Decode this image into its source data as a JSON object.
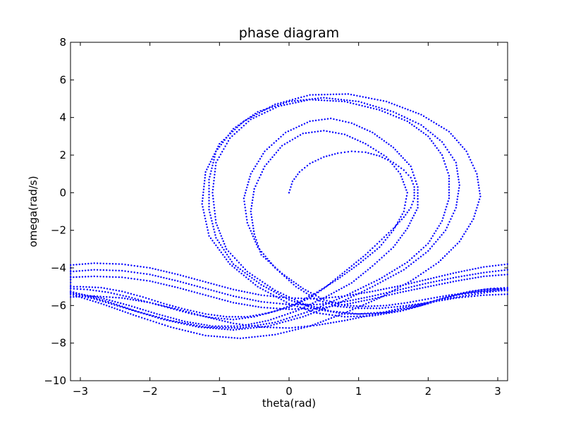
{
  "chart_data": {
    "type": "scatter",
    "title": "phase diagram",
    "xlabel": "theta(rad)",
    "ylabel": "omega(rad/s)",
    "xlim": [
      -3.14159,
      3.14159
    ],
    "ylim": [
      -10,
      8
    ],
    "xticks": [
      -3,
      -2,
      -1,
      0,
      1,
      2,
      3
    ],
    "yticks": [
      -10,
      -8,
      -6,
      -4,
      -2,
      0,
      2,
      4,
      6,
      8
    ],
    "xtick_labels": [
      "−3",
      "−2",
      "−1",
      "0",
      "1",
      "2",
      "3"
    ],
    "ytick_labels": [
      "−10",
      "−8",
      "−6",
      "−4",
      "−2",
      "0",
      "2",
      "4",
      "6",
      "8"
    ],
    "grid": false,
    "marker": "dot",
    "color": "#0000ff",
    "series": [
      {
        "points": [
          [
            0.0,
            0.0
          ],
          [
            0.05,
            0.6
          ],
          [
            0.15,
            1.1
          ],
          [
            0.3,
            1.55
          ],
          [
            0.5,
            1.9
          ],
          [
            0.7,
            2.1
          ],
          [
            0.9,
            2.2
          ],
          [
            1.1,
            2.15
          ],
          [
            1.3,
            1.95
          ],
          [
            1.5,
            1.6
          ],
          [
            1.65,
            1.2
          ],
          [
            1.75,
            0.8
          ],
          [
            1.8,
            0.3
          ],
          [
            1.8,
            -0.3
          ],
          [
            1.75,
            -0.8
          ],
          [
            1.65,
            -1.3
          ],
          [
            1.5,
            -1.9
          ],
          [
            1.3,
            -2.6
          ],
          [
            1.1,
            -3.3
          ],
          [
            0.9,
            -3.9
          ],
          [
            0.7,
            -4.5
          ],
          [
            0.5,
            -5.1
          ],
          [
            0.3,
            -5.6
          ],
          [
            0.0,
            -6.1
          ],
          [
            -0.3,
            -6.4
          ],
          [
            -0.6,
            -6.6
          ],
          [
            -0.9,
            -6.6
          ],
          [
            -1.2,
            -6.45
          ],
          [
            -1.5,
            -6.2
          ],
          [
            -1.8,
            -5.9
          ],
          [
            -2.1,
            -5.55
          ],
          [
            -2.4,
            -5.25
          ],
          [
            -2.7,
            -5.05
          ],
          [
            -3.0,
            -5.0
          ],
          [
            -3.14,
            -5.0
          ],
          [
            3.14,
            -5.1
          ],
          [
            2.9,
            -5.2
          ],
          [
            2.6,
            -5.3
          ],
          [
            2.3,
            -5.45
          ],
          [
            2.0,
            -5.65
          ],
          [
            1.7,
            -5.85
          ],
          [
            1.4,
            -6.0
          ],
          [
            1.1,
            -6.05
          ],
          [
            0.8,
            -6.0
          ],
          [
            0.5,
            -5.7
          ],
          [
            0.2,
            -5.1
          ],
          [
            -0.1,
            -4.3
          ],
          [
            -0.4,
            -3.3
          ],
          [
            -0.5,
            -2.2
          ],
          [
            -0.55,
            -1.0
          ],
          [
            -0.5,
            0.2
          ],
          [
            -0.35,
            1.4
          ],
          [
            -0.1,
            2.5
          ],
          [
            0.2,
            3.15
          ],
          [
            0.5,
            3.3
          ],
          [
            0.8,
            3.1
          ],
          [
            1.1,
            2.6
          ],
          [
            1.4,
            1.9
          ],
          [
            1.6,
            1.0
          ],
          [
            1.7,
            0.0
          ],
          [
            1.65,
            -1.0
          ],
          [
            1.5,
            -2.0
          ],
          [
            1.3,
            -2.9
          ],
          [
            1.0,
            -3.8
          ],
          [
            0.7,
            -4.6
          ],
          [
            0.4,
            -5.3
          ],
          [
            0.1,
            -5.9
          ],
          [
            -0.2,
            -6.3
          ],
          [
            -0.5,
            -6.6
          ],
          [
            -0.8,
            -6.75
          ],
          [
            -1.1,
            -6.65
          ],
          [
            -1.4,
            -6.45
          ],
          [
            -1.7,
            -6.15
          ],
          [
            -2.0,
            -5.85
          ],
          [
            -2.3,
            -5.55
          ],
          [
            -2.6,
            -5.3
          ],
          [
            -2.9,
            -5.15
          ],
          [
            -3.14,
            -5.1
          ],
          [
            3.14,
            -5.15
          ],
          [
            2.85,
            -5.3
          ],
          [
            2.5,
            -5.5
          ],
          [
            2.2,
            -5.7
          ],
          [
            1.9,
            -5.9
          ],
          [
            1.6,
            -6.05
          ],
          [
            1.3,
            -6.15
          ],
          [
            1.0,
            -6.15
          ],
          [
            0.7,
            -6.05
          ],
          [
            0.4,
            -5.7
          ],
          [
            0.1,
            -5.0
          ],
          [
            -0.2,
            -4.0
          ],
          [
            -0.45,
            -2.9
          ],
          [
            -0.6,
            -1.6
          ],
          [
            -0.65,
            -0.3
          ],
          [
            -0.55,
            1.0
          ],
          [
            -0.35,
            2.2
          ],
          [
            -0.05,
            3.2
          ],
          [
            0.3,
            3.8
          ],
          [
            0.6,
            3.95
          ],
          [
            0.9,
            3.7
          ],
          [
            1.2,
            3.2
          ],
          [
            1.5,
            2.4
          ],
          [
            1.75,
            1.4
          ],
          [
            1.85,
            0.3
          ],
          [
            1.85,
            -0.8
          ],
          [
            1.7,
            -1.9
          ],
          [
            1.5,
            -2.9
          ],
          [
            1.2,
            -3.9
          ],
          [
            0.9,
            -4.8
          ],
          [
            0.5,
            -5.6
          ],
          [
            0.1,
            -6.3
          ],
          [
            -0.3,
            -6.8
          ],
          [
            -0.7,
            -7.1
          ],
          [
            -1.1,
            -7.1
          ],
          [
            -1.5,
            -6.85
          ],
          [
            -1.9,
            -6.45
          ],
          [
            -2.3,
            -6.0
          ],
          [
            -2.7,
            -5.6
          ],
          [
            -3.14,
            -5.3
          ],
          [
            3.14,
            -5.05
          ],
          [
            2.9,
            -5.1
          ],
          [
            2.6,
            -5.25
          ],
          [
            2.3,
            -5.5
          ],
          [
            2.0,
            -5.85
          ],
          [
            1.7,
            -6.15
          ],
          [
            1.4,
            -6.35
          ],
          [
            1.0,
            -6.45
          ],
          [
            0.6,
            -6.3
          ],
          [
            0.2,
            -5.9
          ],
          [
            -0.2,
            -5.2
          ],
          [
            -0.6,
            -4.2
          ],
          [
            -0.9,
            -3.0
          ],
          [
            -1.05,
            -1.6
          ],
          [
            -1.1,
            0.0
          ],
          [
            -1.05,
            1.6
          ],
          [
            -0.85,
            2.9
          ],
          [
            -0.55,
            3.9
          ],
          [
            -0.15,
            4.6
          ],
          [
            0.3,
            4.95
          ],
          [
            0.8,
            4.85
          ],
          [
            1.3,
            4.4
          ],
          [
            1.7,
            3.8
          ],
          [
            2.0,
            3.0
          ],
          [
            2.2,
            2.0
          ],
          [
            2.3,
            0.9
          ],
          [
            2.3,
            -0.3
          ],
          [
            2.2,
            -1.5
          ],
          [
            2.0,
            -2.7
          ],
          [
            1.7,
            -3.7
          ],
          [
            1.3,
            -4.6
          ],
          [
            0.8,
            -5.5
          ],
          [
            0.3,
            -6.3
          ],
          [
            -0.2,
            -6.9
          ],
          [
            -0.7,
            -7.2
          ],
          [
            -1.2,
            -7.15
          ],
          [
            -1.7,
            -6.8
          ],
          [
            -2.2,
            -6.3
          ],
          [
            -2.6,
            -5.8
          ],
          [
            -3.14,
            -5.25
          ],
          [
            3.14,
            -5.1
          ],
          [
            2.8,
            -5.15
          ],
          [
            2.5,
            -5.35
          ],
          [
            2.2,
            -5.65
          ],
          [
            1.9,
            -6.0
          ],
          [
            1.6,
            -6.3
          ],
          [
            1.2,
            -6.45
          ],
          [
            0.8,
            -6.45
          ],
          [
            0.4,
            -6.2
          ],
          [
            0.0,
            -5.7
          ],
          [
            -0.4,
            -4.9
          ],
          [
            -0.8,
            -3.8
          ],
          [
            -1.05,
            -2.4
          ],
          [
            -1.15,
            -0.9
          ],
          [
            -1.15,
            0.7
          ],
          [
            -1.05,
            2.2
          ],
          [
            -0.8,
            3.4
          ],
          [
            -0.45,
            4.3
          ],
          [
            0.0,
            4.85
          ],
          [
            0.5,
            5.05
          ],
          [
            1.0,
            4.85
          ],
          [
            1.5,
            4.3
          ],
          [
            1.9,
            3.6
          ],
          [
            2.2,
            2.7
          ],
          [
            2.4,
            1.6
          ],
          [
            2.45,
            0.4
          ],
          [
            2.4,
            -0.8
          ],
          [
            2.25,
            -2.0
          ],
          [
            2.0,
            -3.1
          ],
          [
            1.65,
            -4.1
          ],
          [
            1.2,
            -5.0
          ],
          [
            0.7,
            -5.9
          ],
          [
            0.2,
            -6.6
          ],
          [
            -0.3,
            -7.1
          ],
          [
            -0.8,
            -7.3
          ],
          [
            -1.3,
            -7.15
          ],
          [
            -1.8,
            -6.75
          ],
          [
            -2.3,
            -6.2
          ],
          [
            -2.8,
            -5.65
          ],
          [
            -3.14,
            -5.35
          ],
          [
            3.14,
            -5.2
          ],
          [
            2.8,
            -5.25
          ],
          [
            2.4,
            -5.45
          ],
          [
            2.0,
            -5.9
          ],
          [
            1.6,
            -6.3
          ],
          [
            1.2,
            -6.55
          ],
          [
            0.8,
            -6.6
          ],
          [
            0.4,
            -6.4
          ],
          [
            0.0,
            -5.9
          ],
          [
            -0.45,
            -5.0
          ],
          [
            -0.85,
            -3.8
          ],
          [
            -1.15,
            -2.3
          ],
          [
            -1.25,
            -0.6
          ],
          [
            -1.2,
            1.1
          ],
          [
            -1.0,
            2.6
          ],
          [
            -0.65,
            3.8
          ],
          [
            -0.2,
            4.7
          ],
          [
            0.3,
            5.2
          ],
          [
            0.85,
            5.25
          ],
          [
            1.4,
            4.85
          ],
          [
            1.9,
            4.15
          ],
          [
            2.3,
            3.25
          ],
          [
            2.55,
            2.2
          ],
          [
            2.7,
            1.0
          ],
          [
            2.75,
            -0.2
          ],
          [
            2.65,
            -1.4
          ],
          [
            2.45,
            -2.6
          ],
          [
            2.15,
            -3.7
          ],
          [
            1.75,
            -4.7
          ],
          [
            1.3,
            -5.6
          ],
          [
            0.8,
            -6.4
          ],
          [
            0.3,
            -7.1
          ],
          [
            -0.2,
            -7.55
          ],
          [
            -0.7,
            -7.75
          ],
          [
            -1.2,
            -7.6
          ],
          [
            -1.7,
            -7.15
          ],
          [
            -2.2,
            -6.55
          ],
          [
            -2.7,
            -5.9
          ],
          [
            -3.14,
            -5.4
          ],
          [
            -3.14,
            -3.85
          ],
          [
            -2.8,
            -3.75
          ],
          [
            -2.4,
            -3.8
          ],
          [
            -2.0,
            -4.0
          ],
          [
            -1.6,
            -4.35
          ],
          [
            -1.2,
            -4.75
          ],
          [
            -0.8,
            -5.15
          ],
          [
            -0.4,
            -5.45
          ],
          [
            0.0,
            -5.6
          ],
          [
            0.4,
            -5.65
          ],
          [
            0.8,
            -5.5
          ],
          [
            1.2,
            -5.25
          ],
          [
            1.6,
            -4.95
          ],
          [
            2.0,
            -4.6
          ],
          [
            2.4,
            -4.25
          ],
          [
            2.8,
            -3.95
          ],
          [
            3.14,
            -3.8
          ],
          [
            -3.14,
            -4.2
          ],
          [
            -2.8,
            -4.1
          ],
          [
            -2.4,
            -4.15
          ],
          [
            -2.0,
            -4.35
          ],
          [
            -1.6,
            -4.7
          ],
          [
            -1.2,
            -5.1
          ],
          [
            -0.8,
            -5.5
          ],
          [
            -0.4,
            -5.8
          ],
          [
            0.0,
            -5.95
          ],
          [
            0.4,
            -5.95
          ],
          [
            0.8,
            -5.8
          ],
          [
            1.2,
            -5.5
          ],
          [
            1.6,
            -5.15
          ],
          [
            2.0,
            -4.8
          ],
          [
            2.4,
            -4.5
          ],
          [
            2.8,
            -4.25
          ],
          [
            3.14,
            -4.1
          ],
          [
            -3.14,
            -4.5
          ],
          [
            -2.8,
            -4.45
          ],
          [
            -2.4,
            -4.5
          ],
          [
            -2.0,
            -4.7
          ],
          [
            -1.6,
            -5.05
          ],
          [
            -1.2,
            -5.45
          ],
          [
            -0.8,
            -5.85
          ],
          [
            -0.4,
            -6.1
          ],
          [
            0.0,
            -6.2
          ],
          [
            0.4,
            -6.15
          ],
          [
            0.8,
            -5.95
          ],
          [
            1.2,
            -5.65
          ],
          [
            1.6,
            -5.3
          ],
          [
            2.0,
            -5.0
          ],
          [
            2.4,
            -4.7
          ],
          [
            2.8,
            -4.45
          ],
          [
            3.14,
            -4.35
          ],
          [
            -3.14,
            -5.55
          ],
          [
            -2.8,
            -5.5
          ],
          [
            -2.4,
            -5.6
          ],
          [
            -2.0,
            -5.85
          ],
          [
            -1.6,
            -6.2
          ],
          [
            -1.2,
            -6.6
          ],
          [
            -0.8,
            -6.95
          ],
          [
            -0.4,
            -7.15
          ],
          [
            0.0,
            -7.2
          ],
          [
            0.4,
            -7.05
          ],
          [
            0.8,
            -6.8
          ],
          [
            1.2,
            -6.5
          ],
          [
            1.6,
            -6.15
          ],
          [
            2.0,
            -5.85
          ],
          [
            2.4,
            -5.6
          ],
          [
            2.8,
            -5.45
          ],
          [
            3.14,
            -5.4
          ]
        ]
      }
    ]
  }
}
